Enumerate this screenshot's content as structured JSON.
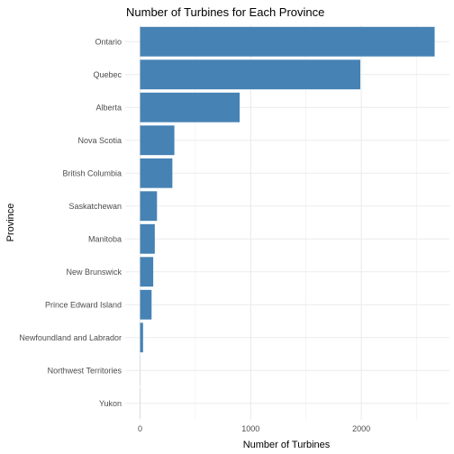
{
  "chart_data": {
    "type": "bar",
    "orientation": "horizontal",
    "title": "Number of Turbines for Each Province",
    "xlabel": "Number of Turbines",
    "ylabel": "Province",
    "categories": [
      "Ontario",
      "Quebec",
      "Alberta",
      "Nova Scotia",
      "British Columbia",
      "Saskatchewan",
      "Manitoba",
      "New Brunswick",
      "Prince Edward Island",
      "Newfoundland and Labrador",
      "Northwest Territories",
      "Yukon"
    ],
    "values": [
      2663,
      1991,
      900,
      310,
      292,
      153,
      133,
      119,
      104,
      27,
      1,
      1
    ],
    "xlim": [
      0,
      2800
    ],
    "xticks": [
      0,
      1000,
      2000
    ],
    "grid": true,
    "legend": "none",
    "bar_color": "#4682B4"
  }
}
